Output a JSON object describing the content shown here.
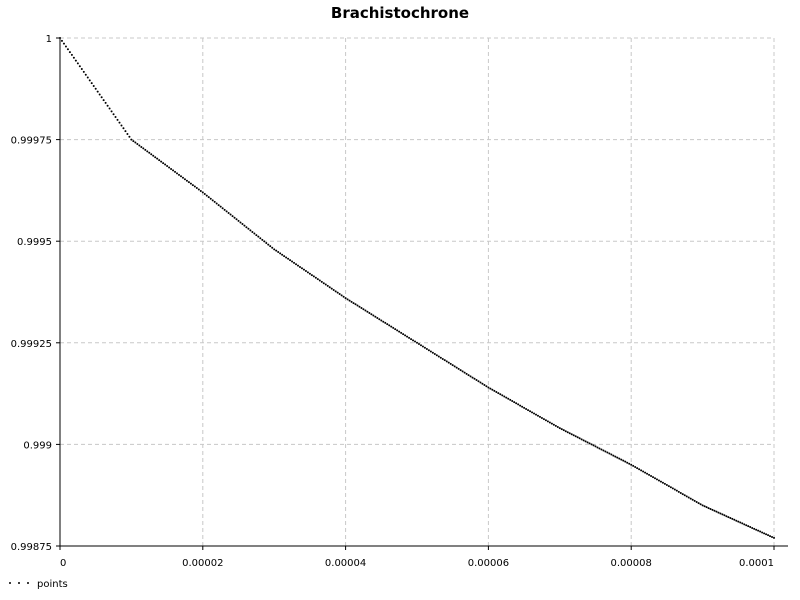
{
  "chart_data": {
    "type": "scatter",
    "title": "Brachistochrone",
    "xlabel": "",
    "ylabel": "",
    "xlim": [
      0,
      0.0001
    ],
    "ylim": [
      0.99875,
      1
    ],
    "x_ticks": [
      "0",
      "0.00002",
      "0.00004",
      "0.00006",
      "0.00008",
      "0.0001"
    ],
    "x_tick_values": [
      0,
      2e-05,
      4e-05,
      6e-05,
      8e-05,
      0.0001
    ],
    "y_ticks": [
      "1",
      "0.99975",
      "0.9995",
      "0.99925",
      "0.999",
      "0.99875"
    ],
    "y_tick_values": [
      1,
      0.99975,
      0.9995,
      0.99925,
      0.999,
      0.99875
    ],
    "grid": true,
    "legend_placement": "bottom-left",
    "series": [
      {
        "name": "points",
        "marker": "dot",
        "color": "#000000",
        "x": [
          0,
          1e-05,
          2e-05,
          3e-05,
          4e-05,
          5e-05,
          6e-05,
          7e-05,
          8e-05,
          9e-05,
          0.0001
        ],
        "y": [
          1,
          0.99975,
          0.99962,
          0.99948,
          0.99936,
          0.99925,
          0.99914,
          0.99904,
          0.99895,
          0.99885,
          0.99877
        ]
      }
    ]
  }
}
